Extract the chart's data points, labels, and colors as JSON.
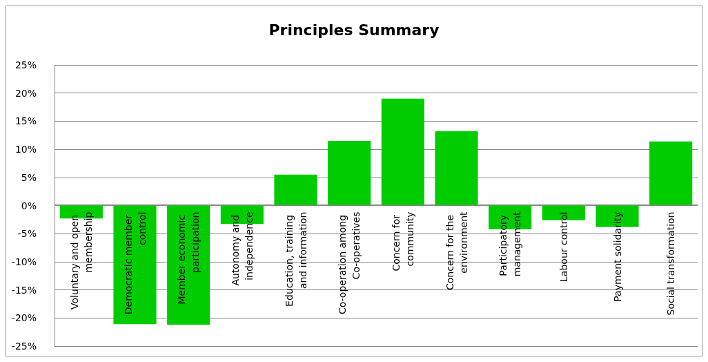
{
  "chart_data": {
    "type": "bar",
    "title": "Principles Summary",
    "categories": [
      "Voluntary and open membership",
      "Democratic member control",
      "Member economic participation",
      "Autonomy and independence",
      "Education, training and information",
      "Co-operation among Co-operatives",
      "Concern for community",
      "Concern for the environment",
      "Participatory management",
      "Labour control",
      "Payment solidarity",
      "Social transformation"
    ],
    "values": [
      -2.3,
      -21.1,
      -21.2,
      -3.3,
      5.5,
      11.5,
      19.0,
      13.2,
      -4.2,
      -2.6,
      -3.8,
      11.4
    ],
    "color": "#00cc00",
    "ylim": [
      -25,
      25
    ],
    "yticks": [
      {
        "value": -25,
        "label": "-25%"
      },
      {
        "value": -20,
        "label": "-20%"
      },
      {
        "value": -15,
        "label": "-15%"
      },
      {
        "value": -10,
        "label": "-10%"
      },
      {
        "value": -5,
        "label": "-5%"
      },
      {
        "value": 0,
        "label": "0%"
      },
      {
        "value": 5,
        "label": "5%"
      },
      {
        "value": 10,
        "label": "10%"
      },
      {
        "value": 15,
        "label": "15%"
      },
      {
        "value": 20,
        "label": "20%"
      },
      {
        "value": 25,
        "label": "25%"
      }
    ],
    "grid": true
  }
}
